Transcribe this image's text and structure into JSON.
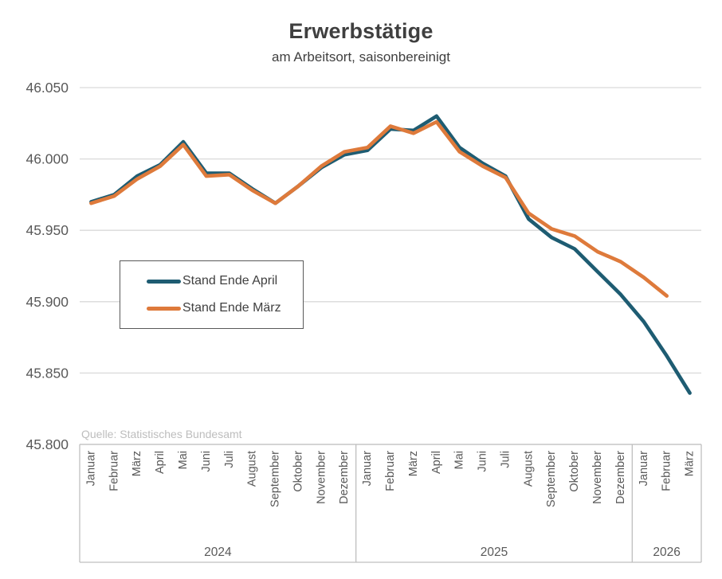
{
  "header": {
    "title": "Erwerbstätige",
    "subtitle": "am Arbeitsort, saisonbereinigt"
  },
  "source": "Quelle: Statistisches Bundesamt",
  "legend": {
    "items": [
      {
        "label": "Stand Ende April",
        "color": "#1e5c72"
      },
      {
        "label": "Stand Ende März",
        "color": "#de7a3b"
      }
    ]
  },
  "chart_data": {
    "type": "line",
    "title": "Erwerbstätige",
    "subtitle": "am Arbeitsort, saisonbereinigt",
    "xlabel": "",
    "ylabel": "",
    "ylim": [
      45.8,
      46.05
    ],
    "y_ticks": [
      46.05,
      46.0,
      45.95,
      45.9,
      45.85,
      45.8
    ],
    "grid": true,
    "legend_position": "inside-left",
    "categories": [
      "Januar",
      "Februar",
      "März",
      "April",
      "Mai",
      "Juni",
      "Juli",
      "August",
      "September",
      "Oktober",
      "November",
      "Dezember",
      "Januar",
      "Februar",
      "März",
      "April",
      "Mai",
      "Juni",
      "Juli",
      "August",
      "September",
      "Oktober",
      "November",
      "Dezember",
      "Januar",
      "Februar",
      "März"
    ],
    "year_groups": [
      {
        "label": "2024",
        "start": 0,
        "count": 12
      },
      {
        "label": "2025",
        "start": 12,
        "count": 12
      },
      {
        "label": "2026",
        "start": 24,
        "count": 3
      }
    ],
    "series": [
      {
        "name": "Stand Ende April",
        "color": "#1e5c72",
        "values": [
          45.97,
          45.975,
          45.988,
          45.996,
          46.012,
          45.99,
          45.99,
          45.979,
          45.969,
          45.981,
          45.994,
          46.003,
          46.006,
          46.021,
          46.02,
          46.03,
          46.008,
          45.997,
          45.988,
          45.958,
          45.945,
          45.937,
          45.921,
          45.905,
          45.886,
          45.862,
          45.836
        ]
      },
      {
        "name": "Stand Ende März",
        "color": "#de7a3b",
        "values": [
          45.969,
          45.974,
          45.986,
          45.995,
          46.01,
          45.988,
          45.989,
          45.978,
          45.969,
          45.981,
          45.995,
          46.005,
          46.008,
          46.023,
          46.018,
          46.026,
          46.005,
          45.995,
          45.987,
          45.962,
          45.951,
          45.946,
          45.935,
          45.928,
          45.917,
          45.904,
          null
        ]
      }
    ]
  }
}
